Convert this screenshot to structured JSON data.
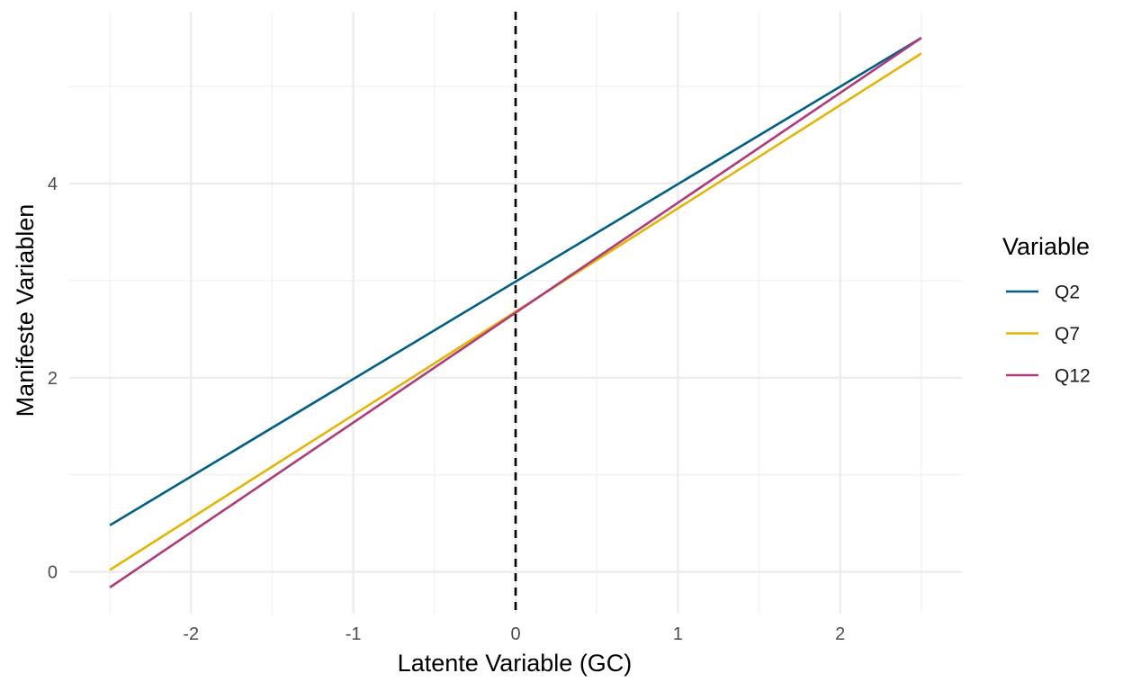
{
  "chart_data": {
    "type": "line",
    "xlabel": "Latente Variable (GC)",
    "ylabel": "Manifeste Variablen",
    "xlim": [
      -2.5,
      2.5
    ],
    "ylim": [
      -0.16,
      5.5
    ],
    "x_ticks": [
      -2,
      -1,
      0,
      1,
      2
    ],
    "x_tick_labels": [
      "-2",
      "-1",
      "0",
      "1",
      "2"
    ],
    "y_ticks": [
      0,
      2,
      4
    ],
    "y_tick_labels": [
      "0",
      "2",
      "4"
    ],
    "grid": true,
    "legend": {
      "title": "Variable",
      "placement": "right"
    },
    "reference_line": {
      "x": 0,
      "style": "dashed",
      "color": "#000000"
    },
    "series": [
      {
        "name": "Q2",
        "color": "#005f87",
        "x": [
          -2.5,
          2.5
        ],
        "y": [
          0.48,
          5.5
        ]
      },
      {
        "name": "Q7",
        "color": "#e3b505",
        "x": [
          -2.5,
          2.5
        ],
        "y": [
          0.02,
          5.34
        ]
      },
      {
        "name": "Q12",
        "color": "#b03a7a",
        "x": [
          -2.5,
          2.5
        ],
        "y": [
          -0.16,
          5.5
        ]
      }
    ]
  }
}
